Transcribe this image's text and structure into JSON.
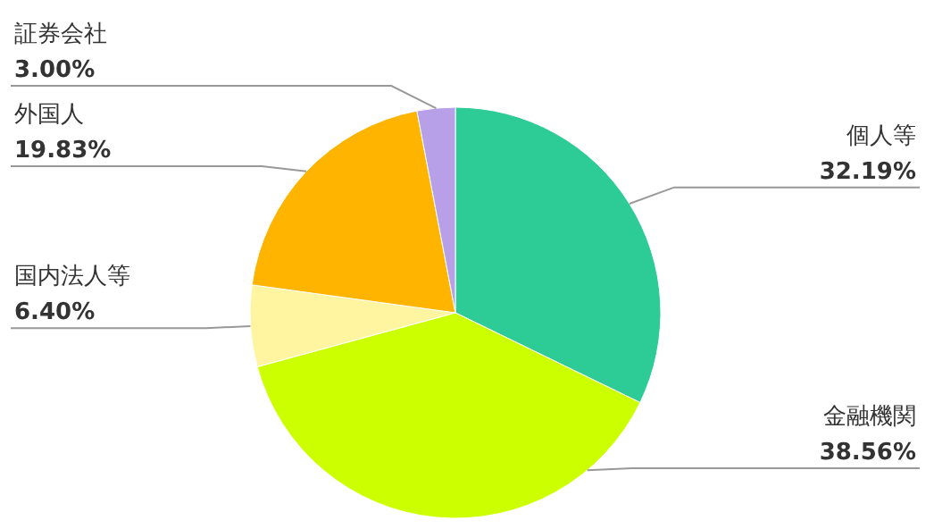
{
  "chart_data": {
    "type": "pie",
    "categories": [
      "個人等",
      "金融機関",
      "国内法人等",
      "外国人",
      "証券会社"
    ],
    "values": [
      32.19,
      38.56,
      6.4,
      19.83,
      3.0
    ],
    "value_labels": [
      "32.19%",
      "38.56%",
      "6.40%",
      "19.83%",
      "3.00%"
    ],
    "colors": [
      "#2dcc97",
      "#ccff00",
      "#fff5a0",
      "#ffb400",
      "#b8a0e8"
    ],
    "legend": false
  }
}
